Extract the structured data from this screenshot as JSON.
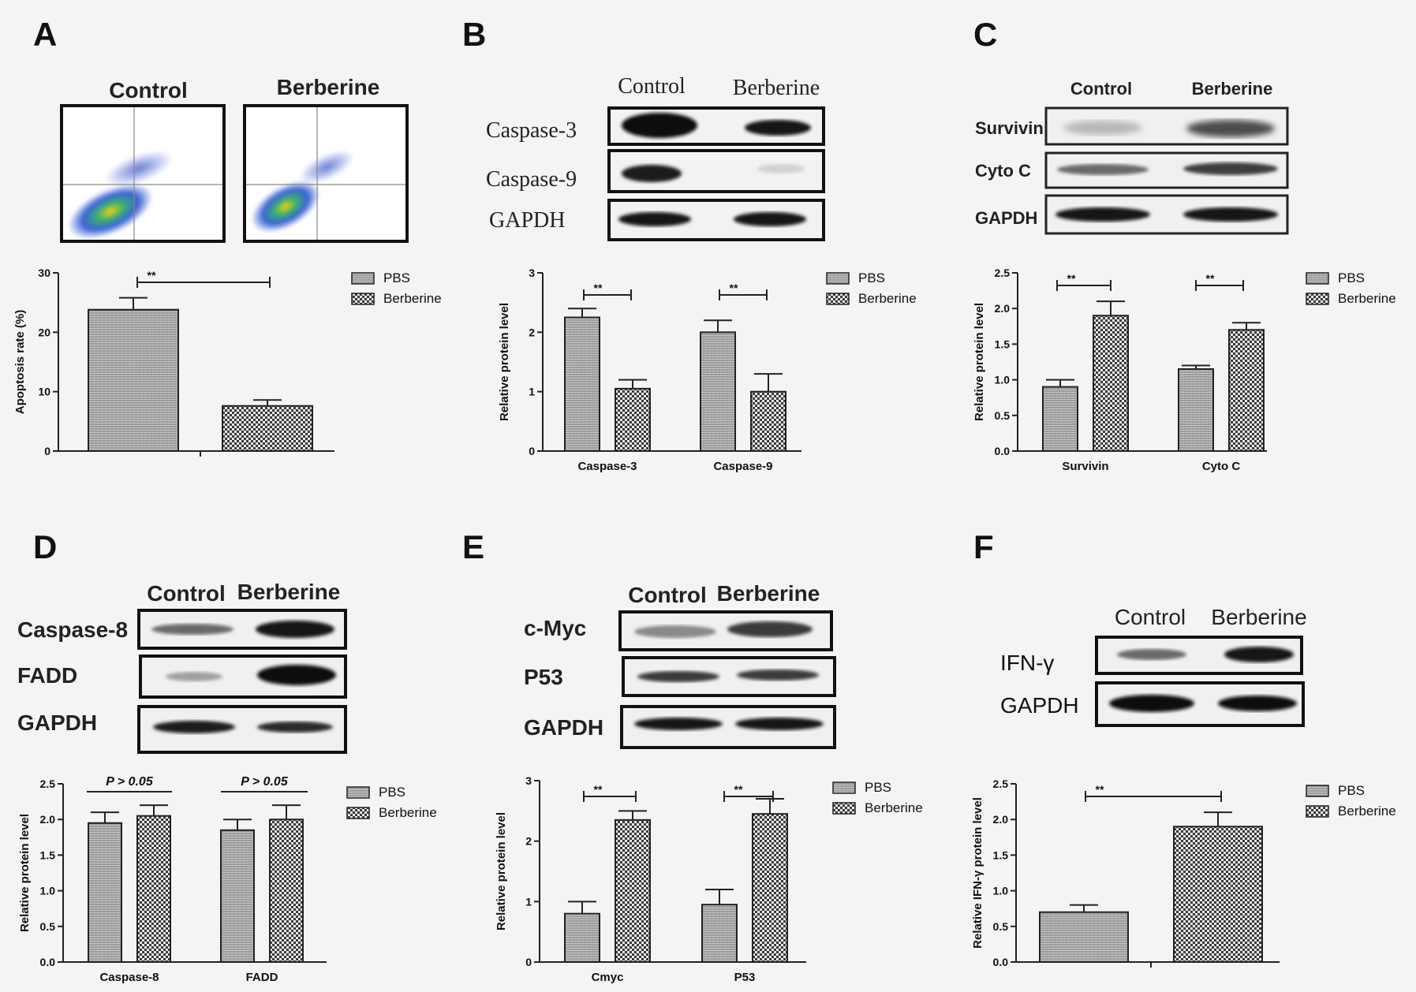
{
  "panels": {
    "A": {
      "letter": "A",
      "col_control": "Control",
      "col_berberine": "Berberine"
    },
    "B": {
      "letter": "B",
      "col_control": "Control",
      "col_berberine": "Berberine",
      "rows": [
        "Caspase-3",
        "Caspase-9",
        "GAPDH"
      ]
    },
    "C": {
      "letter": "C",
      "col_control": "Control",
      "col_berberine": "Berberine",
      "rows": [
        "Survivin",
        "Cyto C",
        "GAPDH"
      ]
    },
    "D": {
      "letter": "D",
      "col_control": "Control",
      "col_berberine": "Berberine",
      "rows": [
        "Caspase-8",
        "FADD",
        "GAPDH"
      ]
    },
    "E": {
      "letter": "E",
      "col_control": "Control",
      "col_berberine": "Berberine",
      "rows": [
        "c-Myc",
        "P53",
        "GAPDH"
      ]
    },
    "F": {
      "letter": "F",
      "col_control": "Control",
      "col_berberine": "Berberine",
      "rows": [
        "IFN-γ",
        "GAPDH"
      ]
    }
  },
  "legend": {
    "pbs": "PBS",
    "berberine": "Berberine"
  },
  "chart_data": [
    {
      "panel": "A",
      "type": "bar",
      "ylabel": "Apoptosis rate (%)",
      "ylim": [
        0,
        30
      ],
      "yticks": [
        "0",
        "10",
        "20",
        "30"
      ],
      "categories": [
        ""
      ],
      "series": [
        {
          "name": "PBS",
          "values": [
            23.8
          ],
          "errors": [
            2.0
          ]
        },
        {
          "name": "Berberine",
          "values": [
            7.6
          ],
          "errors": [
            1.0
          ]
        }
      ],
      "significance": [
        {
          "label": "**"
        }
      ]
    },
    {
      "panel": "B",
      "type": "bar",
      "ylabel": "Relative protein level",
      "ylim": [
        0,
        3
      ],
      "yticks": [
        "0",
        "1",
        "2",
        "3"
      ],
      "categories": [
        "Caspase-3",
        "Caspase-9"
      ],
      "series": [
        {
          "name": "PBS",
          "values": [
            2.25,
            2.0
          ],
          "errors": [
            0.15,
            0.2
          ]
        },
        {
          "name": "Berberine",
          "values": [
            1.05,
            1.0
          ],
          "errors": [
            0.15,
            0.3
          ]
        }
      ],
      "significance": [
        {
          "label": "**"
        },
        {
          "label": "**"
        }
      ]
    },
    {
      "panel": "C",
      "type": "bar",
      "ylabel": "Relative protein level",
      "ylim": [
        0,
        2.5
      ],
      "yticks": [
        "0.0",
        "0.5",
        "1.0",
        "1.5",
        "2.0",
        "2.5"
      ],
      "categories": [
        "Survivin",
        "Cyto C"
      ],
      "series": [
        {
          "name": "PBS",
          "values": [
            0.9,
            1.15
          ],
          "errors": [
            0.1,
            0.05
          ]
        },
        {
          "name": "Berberine",
          "values": [
            1.9,
            1.7
          ],
          "errors": [
            0.2,
            0.1
          ]
        }
      ],
      "significance": [
        {
          "label": "**"
        },
        {
          "label": "**"
        }
      ]
    },
    {
      "panel": "D",
      "type": "bar",
      "ylabel": "Relative protein level",
      "ylim": [
        0,
        2.5
      ],
      "yticks": [
        "0.0",
        "0.5",
        "1.0",
        "1.5",
        "2.0",
        "2.5"
      ],
      "categories": [
        "Caspase-8",
        "FADD"
      ],
      "series": [
        {
          "name": "PBS",
          "values": [
            1.95,
            1.85
          ],
          "errors": [
            0.15,
            0.15
          ]
        },
        {
          "name": "Berberine",
          "values": [
            2.05,
            2.0
          ],
          "errors": [
            0.15,
            0.2
          ]
        }
      ],
      "significance": [
        {
          "label": "P > 0.05"
        },
        {
          "label": "P > 0.05"
        }
      ]
    },
    {
      "panel": "E",
      "type": "bar",
      "ylabel": "Relative protein level",
      "ylim": [
        0,
        3
      ],
      "yticks": [
        "0",
        "1",
        "2",
        "3"
      ],
      "categories": [
        "Cmyc",
        "P53"
      ],
      "series": [
        {
          "name": "PBS",
          "values": [
            0.8,
            0.95
          ],
          "errors": [
            0.2,
            0.25
          ]
        },
        {
          "name": "Berberine",
          "values": [
            2.35,
            2.45
          ],
          "errors": [
            0.15,
            0.25
          ]
        }
      ],
      "significance": [
        {
          "label": "**"
        },
        {
          "label": "**"
        }
      ]
    },
    {
      "panel": "F",
      "type": "bar",
      "ylabel": "Relative IFN-γ protein level",
      "ylim": [
        0,
        2.5
      ],
      "yticks": [
        "0.0",
        "0.5",
        "1.0",
        "1.5",
        "2.0",
        "2.5"
      ],
      "categories": [
        ""
      ],
      "series": [
        {
          "name": "PBS",
          "values": [
            0.7
          ],
          "errors": [
            0.1
          ]
        },
        {
          "name": "Berberine",
          "values": [
            1.9
          ],
          "errors": [
            0.2
          ]
        }
      ],
      "significance": [
        {
          "label": "**"
        }
      ]
    }
  ]
}
